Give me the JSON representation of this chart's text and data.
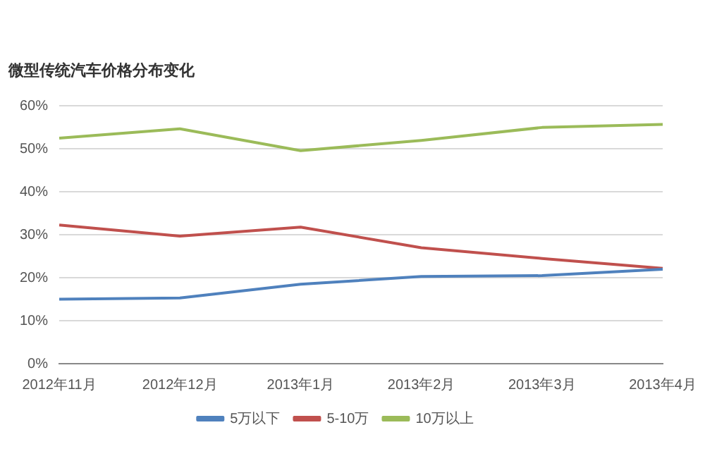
{
  "chart_data": {
    "type": "line",
    "title": "微型传统汽车价格分布变化",
    "categories": [
      "2012年11月",
      "2012年12月",
      "2013年1月",
      "2013年2月",
      "2013年3月",
      "2013年4月"
    ],
    "series": [
      {
        "name": "5万以下",
        "color": "#4f81bd",
        "values": [
          15,
          15.3,
          18.5,
          20.3,
          20.5,
          22
        ]
      },
      {
        "name": "5-10万",
        "color": "#c0504d",
        "values": [
          32.3,
          29.7,
          31.8,
          27,
          24.5,
          22.2
        ]
      },
      {
        "name": "10万以上",
        "color": "#9bbb59",
        "values": [
          52.5,
          54.7,
          49.6,
          52,
          55,
          55.7
        ]
      }
    ],
    "ylim": [
      0,
      60
    ],
    "yticks": [
      {
        "value": 0,
        "label": "0%"
      },
      {
        "value": 10,
        "label": "10%"
      },
      {
        "value": 20,
        "label": "20%"
      },
      {
        "value": 30,
        "label": "30%"
      },
      {
        "value": 40,
        "label": "40%"
      },
      {
        "value": 50,
        "label": "50%"
      },
      {
        "value": 60,
        "label": "60%"
      }
    ],
    "grid": "y",
    "legend": "bottom",
    "marker": "none",
    "line_style": "solid"
  }
}
